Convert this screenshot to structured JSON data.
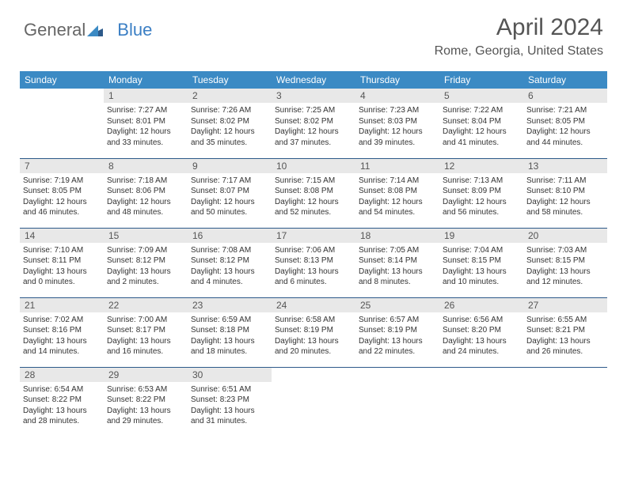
{
  "brand": {
    "part1": "General",
    "part2": "Blue"
  },
  "title": "April 2024",
  "location": "Rome, Georgia, United States",
  "colors": {
    "header_bg": "#3b8ac4",
    "header_text": "#ffffff",
    "daynum_bg": "#e8e8e8",
    "row_border": "#2d5a8a",
    "body_text": "#333333",
    "title_text": "#555555"
  },
  "weekdays": [
    "Sunday",
    "Monday",
    "Tuesday",
    "Wednesday",
    "Thursday",
    "Friday",
    "Saturday"
  ],
  "start_offset": 1,
  "days": [
    {
      "n": 1,
      "sr": "7:27 AM",
      "ss": "8:01 PM",
      "dl": "12 hours and 33 minutes."
    },
    {
      "n": 2,
      "sr": "7:26 AM",
      "ss": "8:02 PM",
      "dl": "12 hours and 35 minutes."
    },
    {
      "n": 3,
      "sr": "7:25 AM",
      "ss": "8:02 PM",
      "dl": "12 hours and 37 minutes."
    },
    {
      "n": 4,
      "sr": "7:23 AM",
      "ss": "8:03 PM",
      "dl": "12 hours and 39 minutes."
    },
    {
      "n": 5,
      "sr": "7:22 AM",
      "ss": "8:04 PM",
      "dl": "12 hours and 41 minutes."
    },
    {
      "n": 6,
      "sr": "7:21 AM",
      "ss": "8:05 PM",
      "dl": "12 hours and 44 minutes."
    },
    {
      "n": 7,
      "sr": "7:19 AM",
      "ss": "8:05 PM",
      "dl": "12 hours and 46 minutes."
    },
    {
      "n": 8,
      "sr": "7:18 AM",
      "ss": "8:06 PM",
      "dl": "12 hours and 48 minutes."
    },
    {
      "n": 9,
      "sr": "7:17 AM",
      "ss": "8:07 PM",
      "dl": "12 hours and 50 minutes."
    },
    {
      "n": 10,
      "sr": "7:15 AM",
      "ss": "8:08 PM",
      "dl": "12 hours and 52 minutes."
    },
    {
      "n": 11,
      "sr": "7:14 AM",
      "ss": "8:08 PM",
      "dl": "12 hours and 54 minutes."
    },
    {
      "n": 12,
      "sr": "7:13 AM",
      "ss": "8:09 PM",
      "dl": "12 hours and 56 minutes."
    },
    {
      "n": 13,
      "sr": "7:11 AM",
      "ss": "8:10 PM",
      "dl": "12 hours and 58 minutes."
    },
    {
      "n": 14,
      "sr": "7:10 AM",
      "ss": "8:11 PM",
      "dl": "13 hours and 0 minutes."
    },
    {
      "n": 15,
      "sr": "7:09 AM",
      "ss": "8:12 PM",
      "dl": "13 hours and 2 minutes."
    },
    {
      "n": 16,
      "sr": "7:08 AM",
      "ss": "8:12 PM",
      "dl": "13 hours and 4 minutes."
    },
    {
      "n": 17,
      "sr": "7:06 AM",
      "ss": "8:13 PM",
      "dl": "13 hours and 6 minutes."
    },
    {
      "n": 18,
      "sr": "7:05 AM",
      "ss": "8:14 PM",
      "dl": "13 hours and 8 minutes."
    },
    {
      "n": 19,
      "sr": "7:04 AM",
      "ss": "8:15 PM",
      "dl": "13 hours and 10 minutes."
    },
    {
      "n": 20,
      "sr": "7:03 AM",
      "ss": "8:15 PM",
      "dl": "13 hours and 12 minutes."
    },
    {
      "n": 21,
      "sr": "7:02 AM",
      "ss": "8:16 PM",
      "dl": "13 hours and 14 minutes."
    },
    {
      "n": 22,
      "sr": "7:00 AM",
      "ss": "8:17 PM",
      "dl": "13 hours and 16 minutes."
    },
    {
      "n": 23,
      "sr": "6:59 AM",
      "ss": "8:18 PM",
      "dl": "13 hours and 18 minutes."
    },
    {
      "n": 24,
      "sr": "6:58 AM",
      "ss": "8:19 PM",
      "dl": "13 hours and 20 minutes."
    },
    {
      "n": 25,
      "sr": "6:57 AM",
      "ss": "8:19 PM",
      "dl": "13 hours and 22 minutes."
    },
    {
      "n": 26,
      "sr": "6:56 AM",
      "ss": "8:20 PM",
      "dl": "13 hours and 24 minutes."
    },
    {
      "n": 27,
      "sr": "6:55 AM",
      "ss": "8:21 PM",
      "dl": "13 hours and 26 minutes."
    },
    {
      "n": 28,
      "sr": "6:54 AM",
      "ss": "8:22 PM",
      "dl": "13 hours and 28 minutes."
    },
    {
      "n": 29,
      "sr": "6:53 AM",
      "ss": "8:22 PM",
      "dl": "13 hours and 29 minutes."
    },
    {
      "n": 30,
      "sr": "6:51 AM",
      "ss": "8:23 PM",
      "dl": "13 hours and 31 minutes."
    }
  ],
  "labels": {
    "sunrise": "Sunrise:",
    "sunset": "Sunset:",
    "daylight": "Daylight:"
  }
}
